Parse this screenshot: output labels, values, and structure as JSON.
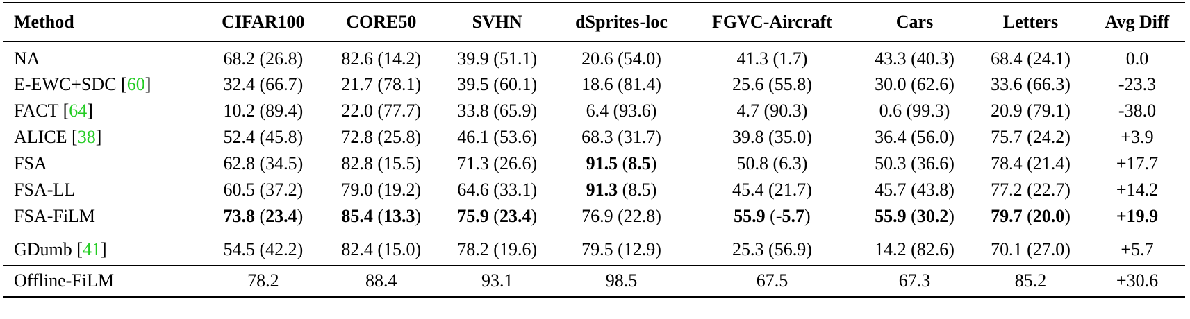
{
  "columns": [
    "Method",
    "CIFAR100",
    "CORE50",
    "SVHN",
    "dSprites-loc",
    "FGVC-Aircraft",
    "Cars",
    "Letters",
    "Avg Diff"
  ],
  "rows": [
    {
      "method": "NA",
      "cite": "",
      "cells": [
        [
          "68.2",
          "26.8"
        ],
        [
          "82.6",
          "14.2"
        ],
        [
          "39.9",
          "51.1"
        ],
        [
          "20.6",
          "54.0"
        ],
        [
          "41.3",
          "1.7"
        ],
        [
          "43.3",
          "40.3"
        ],
        [
          "68.4",
          "24.1"
        ]
      ],
      "avg": "0.0"
    },
    {
      "method": "E-EWC+SDC",
      "cite": "60",
      "cells": [
        [
          "32.4",
          "66.7"
        ],
        [
          "21.7",
          "78.1"
        ],
        [
          "39.5",
          "60.1"
        ],
        [
          "18.6",
          "81.4"
        ],
        [
          "25.6",
          "55.8"
        ],
        [
          "30.0",
          "62.6"
        ],
        [
          "33.6",
          "66.3"
        ]
      ],
      "avg": "-23.3"
    },
    {
      "method": "FACT",
      "cite": "64",
      "cells": [
        [
          "10.2",
          "89.4"
        ],
        [
          "22.0",
          "77.7"
        ],
        [
          "33.8",
          "65.9"
        ],
        [
          "6.4",
          "93.6"
        ],
        [
          "4.7",
          "90.3"
        ],
        [
          "0.6",
          "99.3"
        ],
        [
          "20.9",
          "79.1"
        ]
      ],
      "avg": "-38.0"
    },
    {
      "method": "ALICE",
      "cite": "38",
      "cells": [
        [
          "52.4",
          "45.8"
        ],
        [
          "72.8",
          "25.8"
        ],
        [
          "46.1",
          "53.6"
        ],
        [
          "68.3",
          "31.7"
        ],
        [
          "39.8",
          "35.0"
        ],
        [
          "36.4",
          "56.0"
        ],
        [
          "75.7",
          "24.2"
        ]
      ],
      "avg": "+3.9"
    },
    {
      "method": "FSA",
      "cite": "",
      "cells": [
        [
          "62.8",
          "34.5"
        ],
        [
          "82.8",
          "15.5"
        ],
        [
          "71.3",
          "26.6"
        ],
        [
          "91.5",
          "8.5"
        ],
        [
          "50.8",
          "6.3"
        ],
        [
          "50.3",
          "36.6"
        ],
        [
          "78.4",
          "21.4"
        ]
      ],
      "avg": "+17.7"
    },
    {
      "method": "FSA-LL",
      "cite": "",
      "cells": [
        [
          "60.5",
          "37.2"
        ],
        [
          "79.0",
          "19.2"
        ],
        [
          "64.6",
          "33.1"
        ],
        [
          "91.3",
          "8.5"
        ],
        [
          "45.4",
          "21.7"
        ],
        [
          "45.7",
          "43.8"
        ],
        [
          "77.2",
          "22.7"
        ]
      ],
      "avg": "+14.2"
    },
    {
      "method": "FSA-FiLM",
      "cite": "",
      "cells": [
        [
          "73.8",
          "23.4"
        ],
        [
          "85.4",
          "13.3"
        ],
        [
          "75.9",
          "23.4"
        ],
        [
          "76.9",
          "22.8"
        ],
        [
          "55.9",
          "-5.7"
        ],
        [
          "55.9",
          "30.2"
        ],
        [
          "79.7",
          "20.0"
        ]
      ],
      "avg": "+19.9"
    },
    {
      "method": "GDumb",
      "cite": "41",
      "cells": [
        [
          "54.5",
          "42.2"
        ],
        [
          "82.4",
          "15.0"
        ],
        [
          "78.2",
          "19.6"
        ],
        [
          "79.5",
          "12.9"
        ],
        [
          "25.3",
          "56.9"
        ],
        [
          "14.2",
          "82.6"
        ],
        [
          "70.1",
          "27.0"
        ]
      ],
      "avg": "+5.7"
    },
    {
      "method": "Offline-FiLM",
      "cite": "",
      "cells": [
        [
          "78.2"
        ],
        [
          "88.4"
        ],
        [
          "93.1"
        ],
        [
          "98.5"
        ],
        [
          "67.5"
        ],
        [
          "67.3"
        ],
        [
          "85.2"
        ]
      ],
      "avg": "+30.6"
    }
  ],
  "colors": {
    "citation": "#22cc22",
    "text": "#000000"
  }
}
